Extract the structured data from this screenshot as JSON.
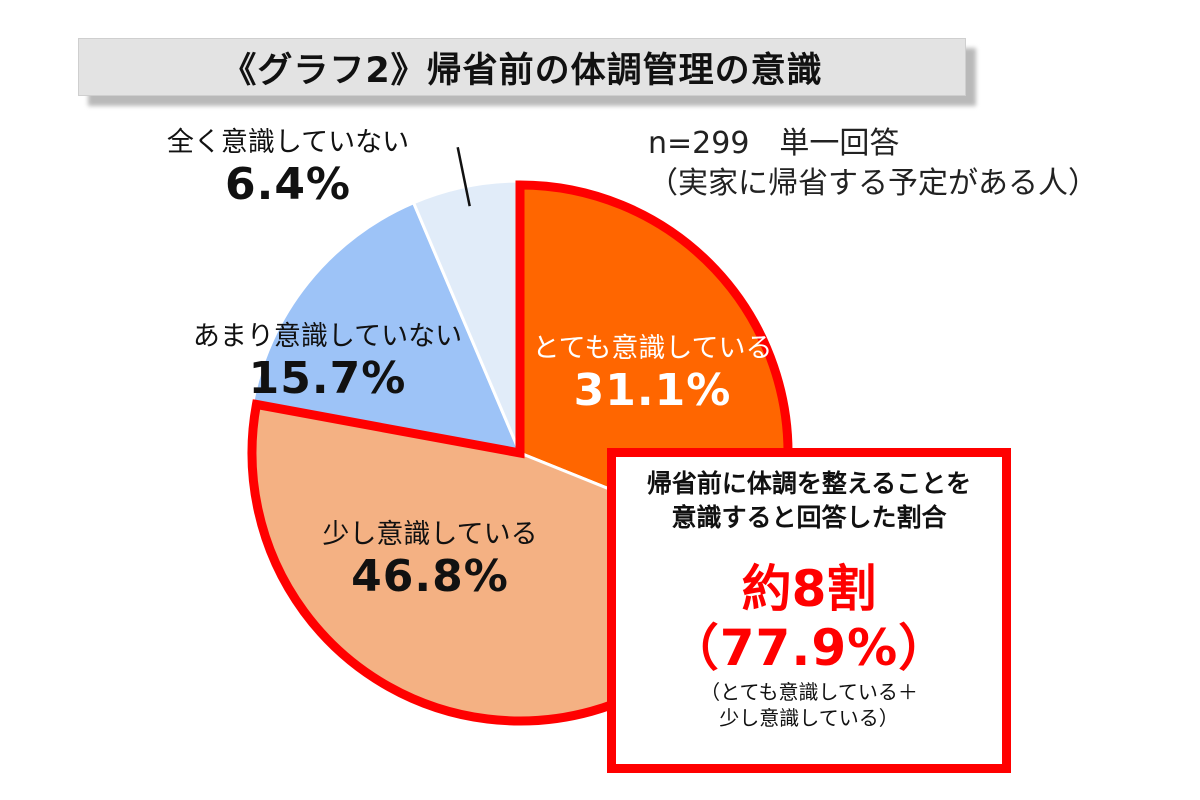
{
  "title": "《グラフ2》帰省前の体調管理の意識",
  "note": {
    "line1": "n=299　単一回答",
    "line2": "（実家に帰省する予定がある人）"
  },
  "callout": {
    "line1": "帰省前に体調を整えることを",
    "line2": "意識すると回答した割合",
    "big": "約8割",
    "pct": "（77.9%）",
    "sub1": "（とても意識している＋",
    "sub2": "少し意識している）"
  },
  "colors": {
    "very": "#ff6600",
    "some": "#f4b183",
    "little": "#9dc3f7",
    "none": "#e1ecf9",
    "highlight": "#ff0000"
  },
  "chart_data": {
    "type": "pie",
    "title": "《グラフ2》帰省前の体調管理の意識",
    "start": "12 o'clock, clockwise",
    "slices": [
      {
        "label": "とても意識している",
        "value": 31.1,
        "display": "31.1%",
        "color": "#ff6600",
        "highlighted": true
      },
      {
        "label": "少し意識している",
        "value": 46.8,
        "display": "46.8%",
        "color": "#f4b183",
        "highlighted": true
      },
      {
        "label": "あまり意識していない",
        "value": 15.7,
        "display": "15.7%",
        "color": "#9dc3f7",
        "highlighted": false
      },
      {
        "label": "全く意識していない",
        "value": 6.4,
        "display": "6.4%",
        "color": "#e1ecf9",
        "highlighted": false
      }
    ]
  }
}
